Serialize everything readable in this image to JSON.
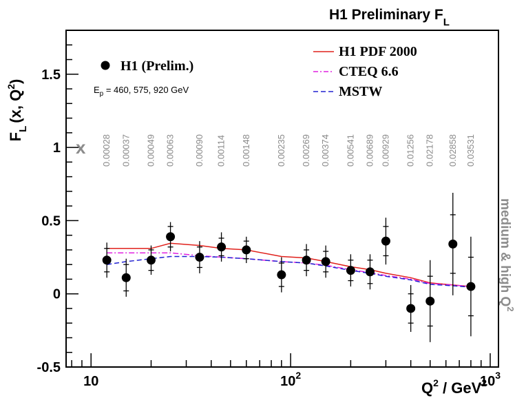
{
  "chart_data": {
    "type": "scatter",
    "title": "H1 Preliminary F",
    "title_subscript": "L",
    "ylabel_main": "F",
    "ylabel_sub": "L",
    "ylabel_rest": "(x, Q",
    "ylabel_sup": "2",
    "ylabel_close": ")",
    "xlabel_main": "Q",
    "xlabel_sup1": "2",
    "xlabel_rest": " / GeV",
    "xlabel_sup2": "2",
    "x_scale": "log",
    "xlim": [
      7.5,
      1100
    ],
    "ylim": [
      -0.5,
      1.8
    ],
    "x_ticks": [
      {
        "value": 10,
        "base": "10",
        "exp": ""
      },
      {
        "value": 100,
        "base": "10",
        "exp": "2"
      },
      {
        "value": 1000,
        "base": "10",
        "exp": "3"
      }
    ],
    "y_ticks": [
      {
        "value": -0.5,
        "label": "-0.5"
      },
      {
        "value": 0,
        "label": "0"
      },
      {
        "value": 0.5,
        "label": "0.5"
      },
      {
        "value": 1,
        "label": "1"
      },
      {
        "value": 1.5,
        "label": "1.5"
      }
    ],
    "x_marker_label": "x",
    "right_label": "medium & high Q",
    "right_label_sup": "2",
    "energy_label": "E",
    "energy_sub": "p",
    "energy_rest": " = 460, 575, 920 GeV",
    "x_values_row": [
      {
        "q2": 12,
        "label": "0.00028"
      },
      {
        "q2": 15,
        "label": "0.00037"
      },
      {
        "q2": 20,
        "label": "0.00049"
      },
      {
        "q2": 25,
        "label": "0.00063"
      },
      {
        "q2": 35,
        "label": "0.00090"
      },
      {
        "q2": 45,
        "label": "0.00114"
      },
      {
        "q2": 60,
        "label": "0.00148"
      },
      {
        "q2": 90,
        "label": "0.00235"
      },
      {
        "q2": 120,
        "label": "0.00269"
      },
      {
        "q2": 150,
        "label": "0.00374"
      },
      {
        "q2": 200,
        "label": "0.00541"
      },
      {
        "q2": 250,
        "label": "0.00689"
      },
      {
        "q2": 300,
        "label": "0.00929"
      },
      {
        "q2": 400,
        "label": "0.01256"
      },
      {
        "q2": 500,
        "label": "0.02178"
      },
      {
        "q2": 650,
        "label": "0.02858"
      },
      {
        "q2": 800,
        "label": "0.03531"
      }
    ],
    "data_points": {
      "name": "H1 (Prelim.)",
      "points": [
        {
          "x": 12,
          "y": 0.23,
          "stat": 0.08,
          "tot": 0.12
        },
        {
          "x": 15,
          "y": 0.11,
          "stat": 0.09,
          "tot": 0.13
        },
        {
          "x": 20,
          "y": 0.23,
          "stat": 0.07,
          "tot": 0.1
        },
        {
          "x": 25,
          "y": 0.39,
          "stat": 0.07,
          "tot": 0.1
        },
        {
          "x": 35,
          "y": 0.25,
          "stat": 0.07,
          "tot": 0.11
        },
        {
          "x": 45,
          "y": 0.32,
          "stat": 0.06,
          "tot": 0.1
        },
        {
          "x": 60,
          "y": 0.3,
          "stat": 0.06,
          "tot": 0.09
        },
        {
          "x": 90,
          "y": 0.13,
          "stat": 0.08,
          "tot": 0.12
        },
        {
          "x": 120,
          "y": 0.23,
          "stat": 0.07,
          "tot": 0.11
        },
        {
          "x": 150,
          "y": 0.22,
          "stat": 0.07,
          "tot": 0.11
        },
        {
          "x": 200,
          "y": 0.16,
          "stat": 0.07,
          "tot": 0.11
        },
        {
          "x": 250,
          "y": 0.15,
          "stat": 0.08,
          "tot": 0.12
        },
        {
          "x": 300,
          "y": 0.36,
          "stat": 0.1,
          "tot": 0.16
        },
        {
          "x": 400,
          "y": -0.1,
          "stat": 0.1,
          "tot": 0.16
        },
        {
          "x": 500,
          "y": -0.05,
          "stat": 0.17,
          "tot": 0.28
        },
        {
          "x": 650,
          "y": 0.34,
          "stat": 0.2,
          "tot": 0.35
        },
        {
          "x": 800,
          "y": 0.05,
          "stat": 0.2,
          "tot": 0.34
        }
      ]
    },
    "series": [
      {
        "name": "H1 PDF 2000",
        "color": "#e0201b",
        "dash": "solid",
        "x": [
          12,
          15,
          20,
          25,
          35,
          45,
          60,
          90,
          120,
          150,
          200,
          250,
          300,
          400,
          500,
          650,
          800
        ],
        "values": [
          0.31,
          0.31,
          0.31,
          0.345,
          0.33,
          0.31,
          0.3,
          0.255,
          0.245,
          0.22,
          0.185,
          0.165,
          0.14,
          0.11,
          0.075,
          0.06,
          0.05
        ]
      },
      {
        "name": "CTEQ 6.6",
        "color": "#e020e0",
        "dash": "dashdot",
        "x": [
          12,
          15,
          20,
          25,
          35,
          45,
          60,
          90,
          120,
          150,
          200,
          250,
          300,
          400,
          500,
          650,
          800
        ],
        "values": [
          0.28,
          0.28,
          0.28,
          0.28,
          0.26,
          0.25,
          0.24,
          0.22,
          0.21,
          0.195,
          0.165,
          0.145,
          0.125,
          0.1,
          0.07,
          0.06,
          0.05
        ]
      },
      {
        "name": "MSTW",
        "color": "#2020d0",
        "dash": "dashed",
        "x": [
          12,
          15,
          20,
          25,
          35,
          45,
          60,
          90,
          120,
          150,
          200,
          250,
          300,
          400,
          500,
          650,
          800
        ],
        "values": [
          0.2,
          0.22,
          0.24,
          0.255,
          0.255,
          0.25,
          0.24,
          0.22,
          0.21,
          0.19,
          0.16,
          0.14,
          0.12,
          0.095,
          0.065,
          0.055,
          0.045
        ]
      }
    ],
    "legend_placement": "top"
  }
}
